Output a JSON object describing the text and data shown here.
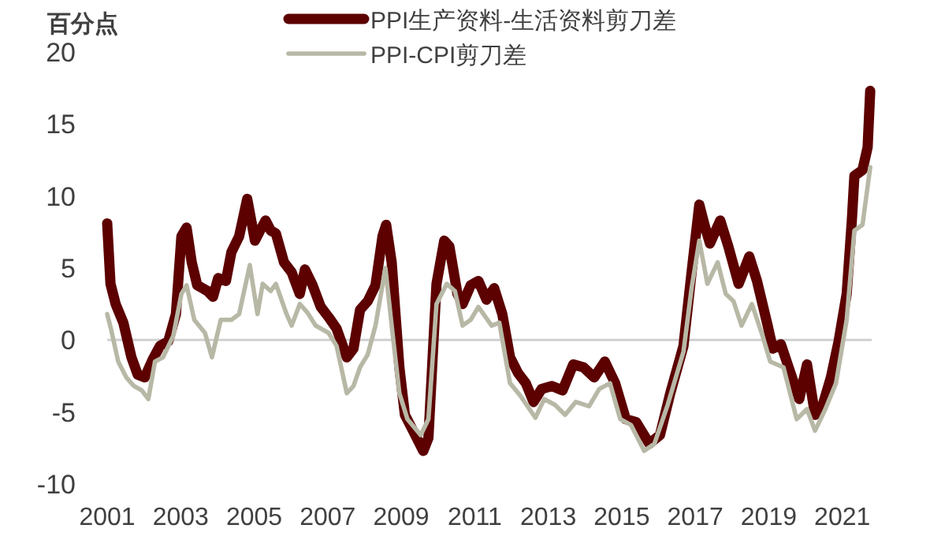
{
  "chart_data": {
    "type": "line",
    "ylabel": "百分点",
    "xlim": [
      2001,
      2021.8
    ],
    "ylim": [
      -10,
      20
    ],
    "xticks": [
      2001,
      2003,
      2005,
      2007,
      2009,
      2011,
      2013,
      2015,
      2017,
      2019,
      2021
    ],
    "yticks": [
      -10,
      -5,
      0,
      5,
      10,
      15,
      20
    ],
    "grid": false,
    "legend": "top",
    "marker": "none",
    "line_style": "solid",
    "ref_lines": [
      {
        "axis": "y",
        "value": 0,
        "color": "#d0d0d0"
      }
    ],
    "series": [
      {
        "name": "PPI生产资料-生活资料剪刀差",
        "color": "#5c0000",
        "x": [
          2001.0,
          2001.09,
          2001.23,
          2001.44,
          2001.66,
          2001.83,
          2002.02,
          2002.23,
          2002.44,
          2002.66,
          2002.87,
          2003.02,
          2003.16,
          2003.3,
          2003.45,
          2003.73,
          2003.88,
          2004.02,
          2004.23,
          2004.38,
          2004.59,
          2004.81,
          2005.02,
          2005.16,
          2005.31,
          2005.45,
          2005.59,
          2005.81,
          2006.02,
          2006.24,
          2006.38,
          2006.59,
          2006.81,
          2007.02,
          2007.24,
          2007.52,
          2007.7,
          2007.88,
          2008.09,
          2008.3,
          2008.49,
          2008.59,
          2008.74,
          2008.95,
          2009.1,
          2009.38,
          2009.6,
          2009.74,
          2009.96,
          2010.17,
          2010.31,
          2010.53,
          2010.67,
          2010.89,
          2011.1,
          2011.32,
          2011.53,
          2011.75,
          2011.96,
          2012.18,
          2012.39,
          2012.6,
          2012.82,
          2013.1,
          2013.39,
          2013.68,
          2013.96,
          2014.25,
          2014.54,
          2014.82,
          2015.11,
          2015.39,
          2015.75,
          2016.04,
          2016.32,
          2016.68,
          2016.9,
          2017.11,
          2017.25,
          2017.4,
          2017.68,
          2017.9,
          2018.18,
          2018.47,
          2018.68,
          2018.97,
          2019.11,
          2019.33,
          2019.54,
          2019.83,
          2020.04,
          2020.26,
          2020.47,
          2020.69,
          2020.9,
          2021.12,
          2021.26,
          2021.33,
          2021.55,
          2021.69,
          2021.76
        ],
        "values": [
          8.1,
          3.9,
          2.5,
          1.2,
          -1.2,
          -2.4,
          -2.6,
          -1.4,
          -0.4,
          -0.1,
          1.8,
          7.2,
          7.8,
          5.4,
          3.8,
          3.4,
          3.0,
          4.3,
          4.1,
          6.1,
          7.2,
          9.8,
          6.9,
          7.6,
          8.3,
          7.6,
          7.4,
          5.4,
          4.7,
          3.2,
          4.9,
          3.8,
          2.3,
          1.6,
          0.8,
          -1.2,
          -0.6,
          2.1,
          2.7,
          3.8,
          7.2,
          8.0,
          5.4,
          -1.9,
          -5.2,
          -6.6,
          -7.7,
          -6.8,
          3.9,
          6.9,
          6.5,
          3.2,
          2.5,
          3.8,
          4.1,
          2.8,
          3.6,
          1.8,
          -1.2,
          -2.3,
          -3.0,
          -4.3,
          -3.4,
          -3.2,
          -3.5,
          -1.7,
          -1.9,
          -2.6,
          -1.5,
          -3.0,
          -5.5,
          -5.7,
          -7.2,
          -6.6,
          -3.7,
          -0.4,
          4.7,
          9.4,
          8.0,
          6.7,
          8.3,
          6.5,
          3.9,
          5.8,
          4.1,
          1.0,
          -0.6,
          -0.3,
          -1.9,
          -4.1,
          -1.7,
          -5.2,
          -4.5,
          -2.6,
          -0.1,
          3.2,
          8.3,
          11.4,
          11.8,
          13.4,
          17.3
        ]
      },
      {
        "name": "PPI-CPI剪刀差",
        "color": "#b8b8a6",
        "x": [
          2001.0,
          2001.11,
          2001.3,
          2001.52,
          2001.73,
          2001.94,
          2002.12,
          2002.3,
          2002.52,
          2002.8,
          2003.02,
          2003.16,
          2003.37,
          2003.66,
          2003.85,
          2004.09,
          2004.38,
          2004.59,
          2004.88,
          2005.09,
          2005.23,
          2005.45,
          2005.59,
          2005.88,
          2006.02,
          2006.24,
          2006.45,
          2006.67,
          2007.02,
          2007.24,
          2007.52,
          2007.7,
          2007.88,
          2008.09,
          2008.3,
          2008.57,
          2008.74,
          2008.95,
          2009.17,
          2009.53,
          2009.74,
          2009.96,
          2010.24,
          2010.46,
          2010.67,
          2010.89,
          2011.1,
          2011.46,
          2011.67,
          2011.96,
          2012.25,
          2012.65,
          2012.89,
          2013.18,
          2013.46,
          2013.75,
          2014.11,
          2014.39,
          2014.68,
          2014.96,
          2015.25,
          2015.61,
          2015.89,
          2016.25,
          2016.68,
          2016.9,
          2017.11,
          2017.33,
          2017.61,
          2017.83,
          2018.04,
          2018.26,
          2018.54,
          2018.83,
          2019.04,
          2019.4,
          2019.76,
          2020.04,
          2020.26,
          2020.54,
          2020.83,
          2021.12,
          2021.33,
          2021.55,
          2021.76
        ],
        "values": [
          1.8,
          0.7,
          -1.5,
          -2.6,
          -3.2,
          -3.5,
          -4.1,
          -1.5,
          -1.2,
          0.3,
          3.2,
          3.8,
          1.4,
          0.5,
          -1.2,
          1.4,
          1.4,
          1.8,
          5.2,
          1.8,
          3.9,
          3.4,
          3.9,
          1.8,
          1.0,
          2.5,
          1.9,
          1.0,
          0.5,
          -0.4,
          -3.7,
          -3.2,
          -1.9,
          -1.0,
          1.0,
          5.0,
          1.0,
          -3.7,
          -5.5,
          -6.6,
          -5.5,
          2.5,
          3.9,
          3.4,
          1.0,
          1.4,
          2.3,
          1.0,
          1.2,
          -3.0,
          -3.9,
          -5.4,
          -4.1,
          -4.5,
          -5.2,
          -4.3,
          -4.6,
          -3.4,
          -3.0,
          -5.5,
          -5.9,
          -7.7,
          -7.2,
          -4.5,
          -0.8,
          3.6,
          6.9,
          3.9,
          5.4,
          3.2,
          2.7,
          1.0,
          2.5,
          0.3,
          -1.5,
          -1.9,
          -5.5,
          -4.8,
          -6.3,
          -4.8,
          -3.0,
          1.4,
          7.6,
          8.0,
          12.0
        ]
      }
    ]
  }
}
